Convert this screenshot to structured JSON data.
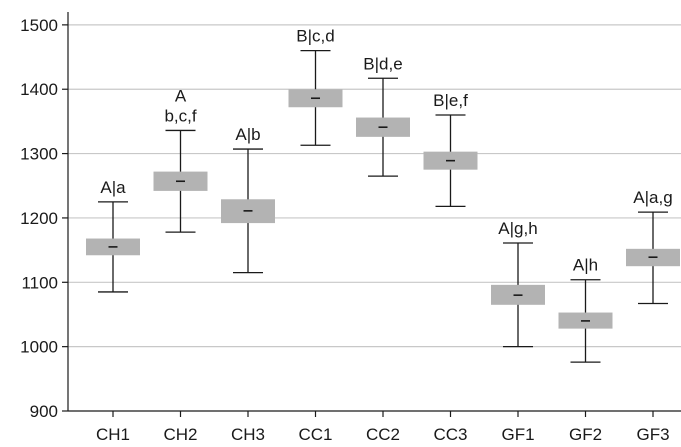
{
  "chart_data": {
    "type": "box",
    "title": "",
    "xlabel": "",
    "ylabel": "",
    "ylim": [
      900,
      1520
    ],
    "yticks": [
      900,
      1000,
      1100,
      1200,
      1300,
      1400,
      1500
    ],
    "grid": "horizontal",
    "colors": {
      "box": "#b3b3b3",
      "line": "#1a1a1a",
      "grid": "#c8c8c8",
      "axis": "#1a1a1a"
    },
    "categories": [
      "CH1",
      "CH2",
      "CH3",
      "CC1",
      "CC2",
      "CC3",
      "GF1",
      "GF2",
      "GF3"
    ],
    "boxes": [
      {
        "category": "CH1",
        "min": 1085,
        "q1": 1142,
        "median": 1155,
        "q3": 1168,
        "max": 1225,
        "labels": [
          "A|a"
        ]
      },
      {
        "category": "CH2",
        "min": 1178,
        "q1": 1242,
        "median": 1257,
        "q3": 1272,
        "max": 1336,
        "labels": [
          "A",
          "b,c,f"
        ]
      },
      {
        "category": "CH3",
        "min": 1115,
        "q1": 1192,
        "median": 1211,
        "q3": 1229,
        "max": 1307,
        "labels": [
          "A|b"
        ]
      },
      {
        "category": "CC1",
        "min": 1313,
        "q1": 1372,
        "median": 1386,
        "q3": 1400,
        "max": 1460,
        "labels": [
          "B|c,d"
        ]
      },
      {
        "category": "CC2",
        "min": 1265,
        "q1": 1326,
        "median": 1341,
        "q3": 1356,
        "max": 1417,
        "labels": [
          "B|d,e"
        ]
      },
      {
        "category": "CC3",
        "min": 1218,
        "q1": 1275,
        "median": 1289,
        "q3": 1303,
        "max": 1360,
        "labels": [
          "B|e,f"
        ]
      },
      {
        "category": "GF1",
        "min": 1000,
        "q1": 1065,
        "median": 1080,
        "q3": 1096,
        "max": 1161,
        "labels": [
          "A|g,h"
        ]
      },
      {
        "category": "GF2",
        "min": 976,
        "q1": 1028,
        "median": 1040,
        "q3": 1053,
        "max": 1104,
        "labels": [
          "A|h"
        ]
      },
      {
        "category": "GF3",
        "min": 1067,
        "q1": 1125,
        "median": 1139,
        "q3": 1152,
        "max": 1209,
        "labels": [
          "A|a,g"
        ]
      }
    ]
  }
}
